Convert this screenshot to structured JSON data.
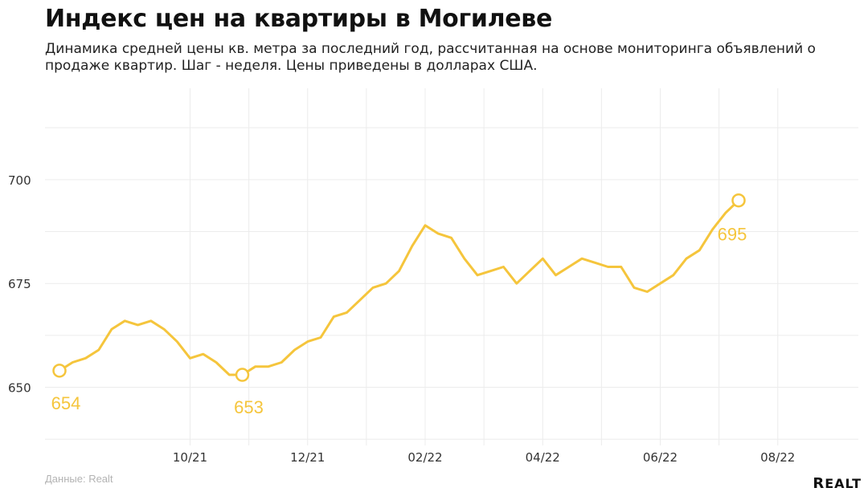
{
  "header": {
    "title": "Индекс цен на квартиры в Могилеве",
    "subtitle": "Динамика средней цены кв. метра за последний год, рассчитанная на основе мониторинга объявлений о продаже квартир. Шаг - неделя. Цены приведены в долларах США."
  },
  "footer": {
    "source": "Данные: Realt",
    "logo": "Realt"
  },
  "colors": {
    "line": "#f5c53c",
    "grid": "#ececec",
    "background": "#ffffff"
  },
  "chart_data": {
    "type": "line",
    "title": "Индекс цен на квартиры в Могилеве",
    "xlabel": "",
    "ylabel": "",
    "ylim": [
      636,
      722
    ],
    "grid": true,
    "x_ticks": [
      {
        "label": "10/21",
        "week": 10
      },
      {
        "label": "12/21",
        "week": 19
      },
      {
        "label": "02/22",
        "week": 28
      },
      {
        "label": "04/22",
        "week": 37
      },
      {
        "label": "06/22",
        "week": 46
      },
      {
        "label": "08/22",
        "week": 55
      }
    ],
    "y_ticks": [
      650,
      675,
      700
    ],
    "series": [
      {
        "values": [
          654,
          656,
          657,
          659,
          664,
          666,
          665,
          666,
          664,
          661,
          657,
          658,
          656,
          653,
          653,
          655,
          655,
          656,
          659,
          661,
          662,
          667,
          668,
          671,
          674,
          675,
          678,
          684,
          689,
          687,
          686,
          681,
          677,
          678,
          679,
          675,
          678,
          681,
          677,
          679,
          681,
          680,
          679,
          679,
          674,
          673,
          675,
          677,
          681,
          683,
          688,
          692,
          695
        ]
      }
    ],
    "annotations": [
      {
        "index": 0,
        "value": 654,
        "label": "654"
      },
      {
        "index": 14,
        "value": 653,
        "label": "653"
      },
      {
        "index": 52,
        "value": 695,
        "label": "695"
      }
    ]
  }
}
